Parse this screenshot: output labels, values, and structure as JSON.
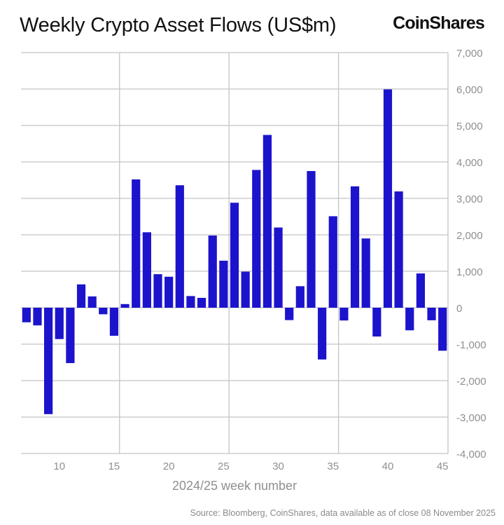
{
  "chart_data": {
    "type": "bar",
    "title": "Weekly Crypto Asset Flows (US$m)",
    "xlabel": "2024/25 week number",
    "ylabel": "",
    "ylim": [
      -4000,
      7000
    ],
    "yticks": [
      7000,
      6000,
      5000,
      4000,
      3000,
      2000,
      1000,
      0,
      -1000,
      -2000,
      -3000,
      -4000
    ],
    "ytick_labels": [
      "7,000",
      "6,000",
      "5,000",
      "4,000",
      "3,000",
      "2,000",
      "1,000",
      "0",
      "-1,000",
      "-2,000",
      "-3,000",
      "-4,000"
    ],
    "xticks": [
      10,
      15,
      20,
      25,
      30,
      35,
      40,
      45
    ],
    "xtick_labels": [
      "10",
      "15",
      "20",
      "25",
      "30",
      "35",
      "40",
      "45"
    ],
    "y_axis_position": "right",
    "grid": true,
    "bar_color": "#1c14cc",
    "x": [
      7,
      8,
      9,
      10,
      11,
      12,
      13,
      14,
      15,
      16,
      17,
      18,
      19,
      20,
      21,
      22,
      23,
      24,
      25,
      26,
      27,
      28,
      29,
      30,
      31,
      32,
      33,
      34,
      35,
      36,
      37,
      38,
      39,
      40,
      41,
      42,
      43,
      44,
      45
    ],
    "values": [
      -400,
      -485,
      -2920,
      -860,
      -1520,
      640,
      310,
      -180,
      -770,
      100,
      3520,
      2070,
      920,
      850,
      3360,
      320,
      270,
      1980,
      1290,
      2880,
      990,
      3780,
      4740,
      2200,
      -340,
      590,
      3750,
      -1420,
      2510,
      -350,
      3330,
      1900,
      -790,
      5990,
      3190,
      -620,
      940,
      -345,
      -1180
    ]
  },
  "brand": {
    "logo": "CoinShares"
  },
  "source": "Source: Bloomberg, CoinShares, data available as of close 08 November 2025"
}
